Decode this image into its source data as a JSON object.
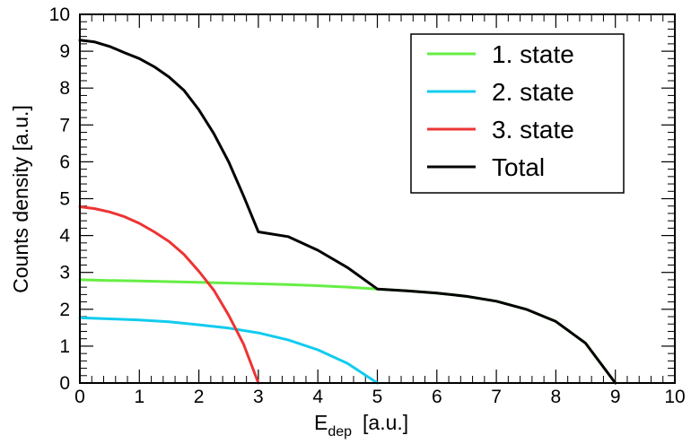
{
  "chart_data": {
    "type": "line",
    "title": "",
    "xlabel": {
      "main": "E",
      "sub": "dep",
      "unit": "[a.u.]"
    },
    "ylabel": "Counts density  [a.u.]",
    "xlim": [
      0,
      10
    ],
    "ylim": [
      0,
      10
    ],
    "xticks": [
      0,
      1,
      2,
      3,
      4,
      5,
      6,
      7,
      8,
      9,
      10
    ],
    "yticks": [
      0,
      1,
      2,
      3,
      4,
      5,
      6,
      7,
      8,
      9,
      10
    ],
    "grid": false,
    "legend_position": "top-right",
    "series": [
      {
        "name": "1. state",
        "color": "#66ee44",
        "x": [
          0,
          0.5,
          1,
          1.5,
          2,
          2.5,
          3,
          3.5,
          4,
          4.5,
          5,
          5.5,
          6,
          6.5,
          7,
          7.5,
          8,
          8.5,
          9
        ],
        "y": [
          2.8,
          2.78,
          2.77,
          2.75,
          2.73,
          2.71,
          2.69,
          2.67,
          2.64,
          2.6,
          2.55,
          2.5,
          2.44,
          2.35,
          2.22,
          2.0,
          1.67,
          1.08,
          0
        ]
      },
      {
        "name": "2. state",
        "color": "#11ccee",
        "x": [
          0,
          0.5,
          1,
          1.5,
          2,
          2.5,
          3,
          3.5,
          4,
          4.5,
          5
        ],
        "y": [
          1.77,
          1.74,
          1.71,
          1.66,
          1.58,
          1.49,
          1.36,
          1.17,
          0.9,
          0.53,
          0
        ]
      },
      {
        "name": "3. state",
        "color": "#ee3333",
        "x": [
          0,
          0.25,
          0.5,
          0.75,
          1,
          1.25,
          1.5,
          1.75,
          2,
          2.25,
          2.5,
          2.75,
          3
        ],
        "y": [
          4.78,
          4.73,
          4.64,
          4.51,
          4.33,
          4.1,
          3.84,
          3.49,
          3.03,
          2.52,
          1.84,
          1.06,
          0
        ]
      },
      {
        "name": "Total",
        "color": "#000000",
        "x": [
          0,
          0.25,
          0.5,
          0.75,
          1,
          1.25,
          1.5,
          1.75,
          2,
          2.25,
          2.5,
          2.75,
          3,
          3.5,
          4,
          4.5,
          5,
          5.5,
          6,
          6.5,
          7,
          7.5,
          8,
          8.5,
          9
        ],
        "y": [
          9.3,
          9.25,
          9.13,
          8.96,
          8.8,
          8.58,
          8.3,
          7.94,
          7.41,
          6.77,
          6.0,
          5.08,
          4.1,
          3.97,
          3.6,
          3.13,
          2.55,
          2.5,
          2.44,
          2.35,
          2.22,
          2.0,
          1.67,
          1.08,
          0
        ]
      }
    ]
  }
}
